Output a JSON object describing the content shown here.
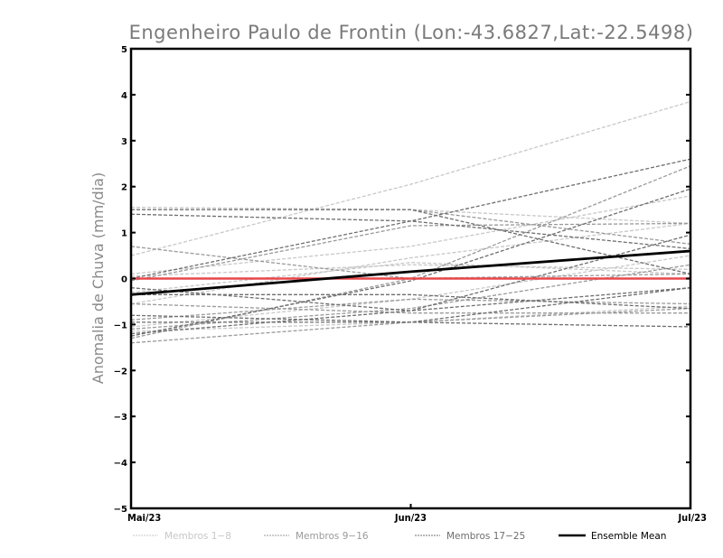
{
  "chart_data": {
    "type": "line",
    "title": "Engenheiro Paulo de Frontin (Lon:-43.6827,Lat:-22.5498)",
    "xlabel": "",
    "ylabel": "Anomalia de Chuva (mm/dia)",
    "x": [
      "Mai/23",
      "Jun/23",
      "Jul/23"
    ],
    "ylim": [
      -5,
      5
    ],
    "yticks": [
      -5,
      -4,
      -3,
      -2,
      -1,
      0,
      1,
      2,
      3,
      4,
      5
    ],
    "grid": false,
    "legend_placement": "bottom",
    "reference_line": {
      "value": 0,
      "color": "#e8474b"
    },
    "series": [
      {
        "name": "Membros 1-8",
        "color": "#c8c8c8",
        "style": "dashed",
        "members": [
          [
            0.5,
            2.05,
            3.85
          ],
          [
            0.1,
            0.7,
            1.8
          ],
          [
            -0.55,
            0.45,
            1.2
          ],
          [
            0.05,
            0.3,
            0.2
          ],
          [
            -1.05,
            -0.45,
            0.5
          ],
          [
            -0.3,
            0.35,
            0.1
          ],
          [
            -1.15,
            -0.95,
            -0.6
          ],
          [
            1.55,
            1.5,
            1.2
          ]
        ]
      },
      {
        "name": "Membros 9-16",
        "color": "#9a9a9a",
        "style": "dashed",
        "members": [
          [
            1.5,
            1.5,
            0.75
          ],
          [
            -0.05,
            1.15,
            1.2
          ],
          [
            -1.3,
            0.0,
            2.45
          ],
          [
            -0.9,
            -0.45,
            -0.55
          ],
          [
            -1.4,
            -0.95,
            -0.65
          ],
          [
            0.7,
            0.0,
            0.1
          ],
          [
            -1.1,
            -0.65,
            0.3
          ],
          [
            -0.55,
            -0.75,
            -0.75
          ]
        ]
      },
      {
        "name": "Membros 17-25",
        "color": "#6e6e6e",
        "style": "dashed",
        "members": [
          [
            1.4,
            1.25,
            0.65
          ],
          [
            0.0,
            1.25,
            2.6
          ],
          [
            1.5,
            1.5,
            0.1
          ],
          [
            -0.2,
            -0.7,
            0.95
          ],
          [
            -1.25,
            -0.05,
            1.95
          ],
          [
            -1.2,
            -0.7,
            -0.2
          ],
          [
            -0.95,
            -0.95,
            -1.05
          ],
          [
            -0.35,
            -0.35,
            -0.65
          ],
          [
            -0.8,
            -0.95,
            -0.2
          ]
        ]
      },
      {
        "name": "Ensemble Mean",
        "color": "#000000",
        "style": "solid",
        "values": [
          -0.35,
          0.15,
          0.6
        ]
      }
    ]
  }
}
